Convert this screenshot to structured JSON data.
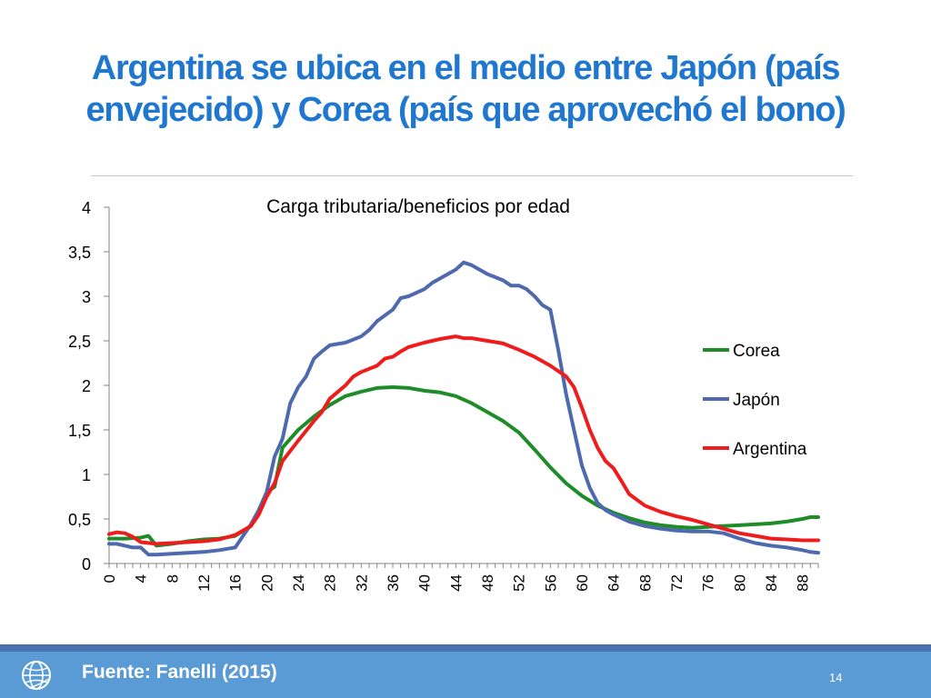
{
  "slide": {
    "title_line1": "Argentina se ubica en el medio entre Japón (país",
    "title_line2": "envejecido) y Corea (país que aprovechó el bono)",
    "footer_source": "Fuente: Fanelli (2015)",
    "page_number": "14",
    "footer_icon": "globe-icon"
  },
  "chart_data": {
    "type": "line",
    "title": "Carga tributaria/beneficios por edad",
    "xlabel": "",
    "ylabel": "",
    "ylim": [
      0,
      4
    ],
    "yticks": [
      0,
      0.5,
      1,
      1.5,
      2,
      2.5,
      3,
      3.5,
      4
    ],
    "ytick_labels": [
      "0",
      "0,5",
      "1",
      "1,5",
      "2",
      "2,5",
      "3",
      "3,5",
      "4"
    ],
    "xlim": [
      0,
      90
    ],
    "xtick_labels": [
      "0",
      "4",
      "8",
      "12",
      "16",
      "20",
      "24",
      "28",
      "32",
      "36",
      "40",
      "44",
      "48",
      "52",
      "56",
      "60",
      "64",
      "68",
      "72",
      "76",
      "80",
      "84",
      "88"
    ],
    "grid": false,
    "legend_position": "right",
    "series": [
      {
        "name": "Corea",
        "color": "#1e8c28",
        "points": [
          [
            0,
            0.28
          ],
          [
            2,
            0.28
          ],
          [
            4,
            0.29
          ],
          [
            5,
            0.31
          ],
          [
            6,
            0.2
          ],
          [
            8,
            0.22
          ],
          [
            10,
            0.25
          ],
          [
            12,
            0.27
          ],
          [
            14,
            0.28
          ],
          [
            16,
            0.31
          ],
          [
            18,
            0.42
          ],
          [
            19,
            0.6
          ],
          [
            20,
            0.8
          ],
          [
            21,
            0.86
          ],
          [
            22,
            1.3
          ],
          [
            24,
            1.5
          ],
          [
            26,
            1.65
          ],
          [
            28,
            1.78
          ],
          [
            30,
            1.88
          ],
          [
            32,
            1.93
          ],
          [
            34,
            1.97
          ],
          [
            36,
            1.98
          ],
          [
            38,
            1.97
          ],
          [
            40,
            1.94
          ],
          [
            42,
            1.92
          ],
          [
            44,
            1.88
          ],
          [
            46,
            1.8
          ],
          [
            48,
            1.7
          ],
          [
            50,
            1.6
          ],
          [
            52,
            1.47
          ],
          [
            54,
            1.28
          ],
          [
            56,
            1.08
          ],
          [
            58,
            0.9
          ],
          [
            60,
            0.76
          ],
          [
            62,
            0.65
          ],
          [
            64,
            0.57
          ],
          [
            66,
            0.51
          ],
          [
            68,
            0.46
          ],
          [
            70,
            0.43
          ],
          [
            72,
            0.41
          ],
          [
            74,
            0.4
          ],
          [
            76,
            0.41
          ],
          [
            78,
            0.42
          ],
          [
            80,
            0.43
          ],
          [
            82,
            0.44
          ],
          [
            84,
            0.45
          ],
          [
            86,
            0.47
          ],
          [
            88,
            0.5
          ],
          [
            89,
            0.52
          ],
          [
            90,
            0.52
          ]
        ]
      },
      {
        "name": "Japón",
        "color": "#4e69ad",
        "points": [
          [
            0,
            0.22
          ],
          [
            1,
            0.22
          ],
          [
            2,
            0.2
          ],
          [
            3,
            0.18
          ],
          [
            4,
            0.18
          ],
          [
            5,
            0.1
          ],
          [
            6,
            0.1
          ],
          [
            8,
            0.11
          ],
          [
            10,
            0.12
          ],
          [
            12,
            0.13
          ],
          [
            14,
            0.15
          ],
          [
            16,
            0.18
          ],
          [
            18,
            0.44
          ],
          [
            19,
            0.6
          ],
          [
            20,
            0.8
          ],
          [
            21,
            1.2
          ],
          [
            22,
            1.4
          ],
          [
            23,
            1.8
          ],
          [
            24,
            1.98
          ],
          [
            25,
            2.1
          ],
          [
            26,
            2.3
          ],
          [
            27,
            2.38
          ],
          [
            28,
            2.45
          ],
          [
            30,
            2.48
          ],
          [
            32,
            2.55
          ],
          [
            33,
            2.62
          ],
          [
            34,
            2.72
          ],
          [
            36,
            2.85
          ],
          [
            37,
            2.98
          ],
          [
            38,
            3.0
          ],
          [
            40,
            3.08
          ],
          [
            41,
            3.15
          ],
          [
            42,
            3.2
          ],
          [
            44,
            3.3
          ],
          [
            45,
            3.38
          ],
          [
            46,
            3.35
          ],
          [
            48,
            3.25
          ],
          [
            50,
            3.18
          ],
          [
            51,
            3.12
          ],
          [
            52,
            3.12
          ],
          [
            53,
            3.08
          ],
          [
            54,
            3.0
          ],
          [
            55,
            2.9
          ],
          [
            56,
            2.85
          ],
          [
            57,
            2.4
          ],
          [
            58,
            1.9
          ],
          [
            59,
            1.5
          ],
          [
            60,
            1.1
          ],
          [
            61,
            0.85
          ],
          [
            62,
            0.68
          ],
          [
            63,
            0.6
          ],
          [
            64,
            0.55
          ],
          [
            66,
            0.47
          ],
          [
            68,
            0.42
          ],
          [
            70,
            0.39
          ],
          [
            72,
            0.37
          ],
          [
            74,
            0.36
          ],
          [
            76,
            0.36
          ],
          [
            78,
            0.34
          ],
          [
            80,
            0.28
          ],
          [
            82,
            0.23
          ],
          [
            84,
            0.2
          ],
          [
            86,
            0.18
          ],
          [
            88,
            0.15
          ],
          [
            89,
            0.13
          ],
          [
            90,
            0.12
          ]
        ]
      },
      {
        "name": "Argentina",
        "color": "#ee1c1c",
        "points": [
          [
            0,
            0.33
          ],
          [
            1,
            0.35
          ],
          [
            2,
            0.34
          ],
          [
            3,
            0.3
          ],
          [
            4,
            0.24
          ],
          [
            6,
            0.22
          ],
          [
            8,
            0.23
          ],
          [
            10,
            0.24
          ],
          [
            12,
            0.25
          ],
          [
            14,
            0.27
          ],
          [
            16,
            0.32
          ],
          [
            18,
            0.42
          ],
          [
            19,
            0.55
          ],
          [
            20,
            0.75
          ],
          [
            21,
            0.9
          ],
          [
            22,
            1.15
          ],
          [
            24,
            1.38
          ],
          [
            26,
            1.6
          ],
          [
            27,
            1.7
          ],
          [
            28,
            1.85
          ],
          [
            30,
            2.0
          ],
          [
            31,
            2.1
          ],
          [
            32,
            2.15
          ],
          [
            34,
            2.22
          ],
          [
            35,
            2.3
          ],
          [
            36,
            2.32
          ],
          [
            37,
            2.38
          ],
          [
            38,
            2.43
          ],
          [
            40,
            2.48
          ],
          [
            42,
            2.52
          ],
          [
            44,
            2.55
          ],
          [
            45,
            2.53
          ],
          [
            46,
            2.53
          ],
          [
            48,
            2.5
          ],
          [
            50,
            2.47
          ],
          [
            52,
            2.4
          ],
          [
            54,
            2.32
          ],
          [
            56,
            2.22
          ],
          [
            58,
            2.1
          ],
          [
            59,
            1.98
          ],
          [
            60,
            1.75
          ],
          [
            61,
            1.5
          ],
          [
            62,
            1.3
          ],
          [
            63,
            1.15
          ],
          [
            64,
            1.07
          ],
          [
            65,
            0.93
          ],
          [
            66,
            0.78
          ],
          [
            68,
            0.65
          ],
          [
            70,
            0.58
          ],
          [
            72,
            0.53
          ],
          [
            74,
            0.49
          ],
          [
            76,
            0.44
          ],
          [
            78,
            0.39
          ],
          [
            80,
            0.34
          ],
          [
            82,
            0.31
          ],
          [
            84,
            0.28
          ],
          [
            86,
            0.27
          ],
          [
            88,
            0.26
          ],
          [
            90,
            0.26
          ]
        ]
      }
    ]
  }
}
